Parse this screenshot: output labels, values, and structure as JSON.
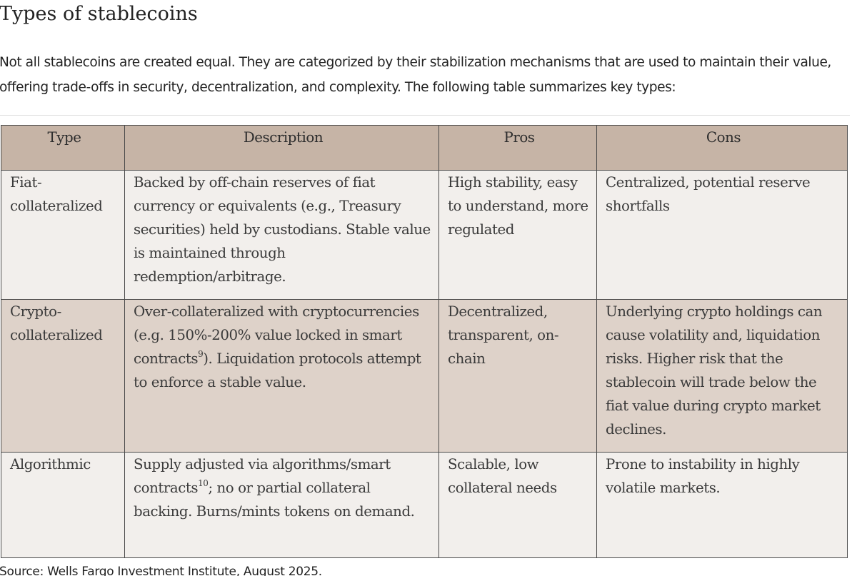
{
  "title": "Types of stablecoins",
  "intro": "Not all stablecoins are created equal. They are categorized by their stabilization mechanisms that are used to maintain their value, offering trade-offs in security, decentralization, and complexity. The following table summarizes key types:",
  "table": {
    "headers": [
      "Type",
      "Description",
      "Pros",
      "Cons"
    ],
    "rows": [
      {
        "type": "Fiat-collateralized",
        "description": "Backed by off-chain reserves of fiat currency or equivalents (e.g., Treasury securities) held by custodians. Stable value is maintained through redemption/arbitrage.",
        "pros": "High stability, easy to understand, more regulated",
        "cons": "Centralized, potential reserve shortfalls"
      },
      {
        "type": "Crypto-collateralized",
        "description_before": "Over-collateralized with cryptocurrencies (e.g. 150%-200% value locked in smart contracts",
        "description_sup": "9",
        "description_after": "). Liquidation protocols attempt to enforce a stable value.",
        "pros": "Decentralized, transparent, on-chain",
        "cons": "Underlying crypto holdings can cause volatility and, liquidation risks. Higher risk that the stablecoin will trade below the fiat value during crypto market declines."
      },
      {
        "type": "Algorithmic",
        "description_before": "Supply adjusted via algorithms/smart contracts",
        "description_sup": "10",
        "description_after": "; no or partial collateral backing. Burns/mints tokens on demand.",
        "pros": "Scalable, low collateral needs",
        "cons": "Prone to instability in highly volatile markets."
      }
    ]
  },
  "source": "Source: Wells Fargo Investment Institute, August 2025."
}
